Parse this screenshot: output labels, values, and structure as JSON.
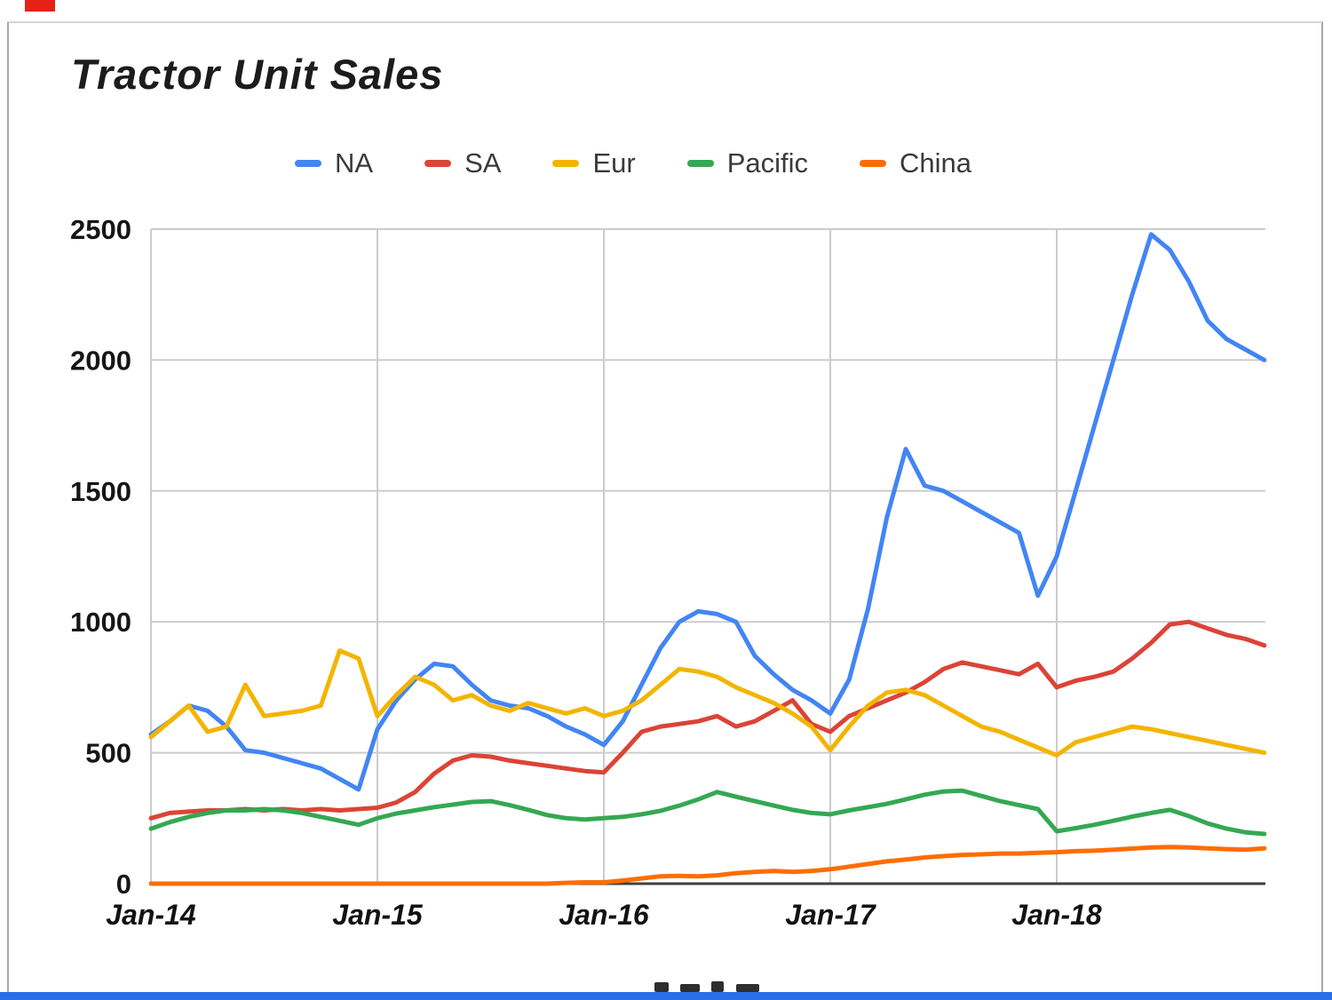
{
  "page": {
    "marker_color": "#e62117",
    "selection_border_color": "#2a6fe8"
  },
  "chart_data": {
    "type": "line",
    "title": "Tractor Unit Sales",
    "xlabel": "",
    "ylabel": "",
    "grid": true,
    "legend_position": "top",
    "ylim": [
      0,
      2500
    ],
    "y_ticks": [
      0,
      500,
      1000,
      1500,
      2000,
      2500
    ],
    "x_months_total": 60,
    "x_ticks": [
      {
        "label": "Jan-14",
        "month": 0
      },
      {
        "label": "Jan-15",
        "month": 12
      },
      {
        "label": "Jan-16",
        "month": 24
      },
      {
        "label": "Jan-17",
        "month": 36
      },
      {
        "label": "Jan-18",
        "month": 48
      }
    ],
    "series": [
      {
        "name": "NA",
        "color": "#4285F4",
        "values": [
          570,
          620,
          680,
          660,
          600,
          510,
          500,
          480,
          460,
          440,
          400,
          360,
          590,
          700,
          780,
          840,
          830,
          760,
          700,
          680,
          670,
          640,
          600,
          570,
          530,
          620,
          760,
          900,
          1000,
          1040,
          1030,
          1000,
          870,
          800,
          740,
          700,
          650,
          780,
          1050,
          1400,
          1660,
          1520,
          1500,
          1460,
          1420,
          1380,
          1340,
          1100,
          1250,
          1500,
          1750,
          2000,
          2250,
          2480,
          2420,
          2300,
          2150,
          2080,
          2040,
          2000
        ]
      },
      {
        "name": "SA",
        "color": "#DB4437",
        "values": [
          250,
          270,
          275,
          280,
          280,
          285,
          280,
          285,
          280,
          285,
          280,
          285,
          290,
          310,
          350,
          420,
          470,
          490,
          485,
          470,
          460,
          450,
          440,
          430,
          425,
          500,
          580,
          600,
          610,
          620,
          640,
          600,
          620,
          660,
          700,
          610,
          580,
          640,
          670,
          700,
          730,
          770,
          820,
          845,
          830,
          815,
          800,
          840,
          750,
          775,
          790,
          810,
          860,
          920,
          990,
          1000,
          975,
          950,
          935,
          910
        ]
      },
      {
        "name": "Eur",
        "color": "#F4B400",
        "values": [
          560,
          620,
          680,
          580,
          600,
          760,
          640,
          650,
          660,
          680,
          890,
          860,
          640,
          720,
          790,
          760,
          700,
          720,
          680,
          660,
          690,
          670,
          650,
          670,
          640,
          660,
          700,
          760,
          820,
          810,
          790,
          750,
          720,
          690,
          650,
          600,
          510,
          600,
          680,
          730,
          740,
          720,
          680,
          640,
          600,
          580,
          550,
          520,
          490,
          540,
          560,
          580,
          600,
          590,
          575,
          560,
          545,
          530,
          515,
          500
        ]
      },
      {
        "name": "Pacific",
        "color": "#34A853",
        "values": [
          210,
          235,
          255,
          270,
          280,
          280,
          285,
          280,
          270,
          255,
          240,
          225,
          250,
          268,
          280,
          292,
          302,
          312,
          315,
          300,
          282,
          262,
          250,
          245,
          250,
          255,
          265,
          278,
          298,
          322,
          350,
          332,
          315,
          298,
          282,
          270,
          265,
          280,
          292,
          305,
          322,
          340,
          352,
          355,
          335,
          315,
          300,
          285,
          200,
          212,
          225,
          240,
          256,
          270,
          282,
          258,
          230,
          210,
          196,
          190
        ]
      },
      {
        "name": "China",
        "color": "#FF6D01",
        "values": [
          0,
          0,
          0,
          0,
          0,
          0,
          0,
          0,
          0,
          0,
          0,
          0,
          0,
          0,
          0,
          0,
          0,
          0,
          0,
          0,
          0,
          0,
          3,
          5,
          5,
          12,
          20,
          28,
          30,
          28,
          32,
          40,
          45,
          48,
          45,
          48,
          55,
          65,
          75,
          85,
          92,
          100,
          105,
          110,
          112,
          115,
          115,
          118,
          120,
          124,
          126,
          130,
          134,
          138,
          140,
          138,
          135,
          132,
          130,
          135
        ]
      }
    ]
  }
}
